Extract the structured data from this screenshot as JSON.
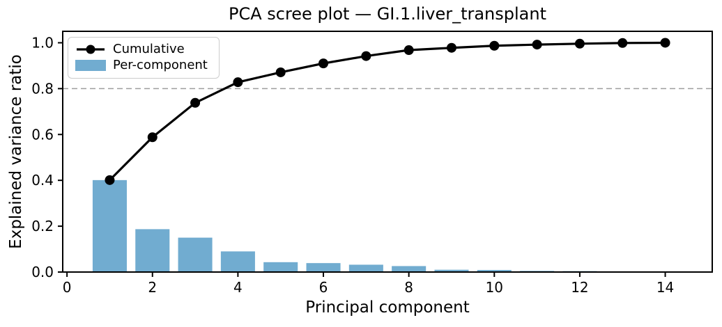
{
  "chart_data": {
    "type": "bar+line",
    "title": "PCA scree plot — GI.1.liver_transplant",
    "xlabel": "Principal component",
    "ylabel": "Explained variance ratio",
    "x": [
      1,
      2,
      3,
      4,
      5,
      6,
      7,
      8,
      9,
      10,
      11,
      12,
      13,
      14
    ],
    "series": [
      {
        "name": "Cumulative",
        "type": "line",
        "color": "#000000",
        "marker": "circle",
        "values": [
          0.401,
          0.588,
          0.738,
          0.828,
          0.871,
          0.91,
          0.942,
          0.968,
          0.978,
          0.987,
          0.992,
          0.996,
          0.999,
          1.0
        ]
      },
      {
        "name": "Per-component",
        "type": "bar",
        "color": "#71acd0",
        "values": [
          0.401,
          0.187,
          0.15,
          0.09,
          0.043,
          0.039,
          0.032,
          0.026,
          0.01,
          0.009,
          0.005,
          0.004,
          0.003,
          0.001
        ]
      }
    ],
    "reference_line": {
      "y": 0.8,
      "style": "dashed",
      "color": "#9e9e9e"
    },
    "xlim": [
      -0.1,
      15.1
    ],
    "ylim": [
      0,
      1.05
    ],
    "x_ticks": [
      0,
      2,
      4,
      6,
      8,
      10,
      12,
      14
    ],
    "x_tick_labels": [
      "0",
      "2",
      "4",
      "6",
      "8",
      "10",
      "12",
      "14"
    ],
    "y_ticks": [
      0.0,
      0.2,
      0.4,
      0.6,
      0.8,
      1.0
    ],
    "y_tick_labels": [
      "0.0",
      "0.2",
      "0.4",
      "0.6",
      "0.8",
      "1.0"
    ],
    "bar_width": 0.8,
    "grid": false,
    "legend_position": "upper left",
    "axis_color": "#000000",
    "legend_border_color": "#cccccc"
  }
}
